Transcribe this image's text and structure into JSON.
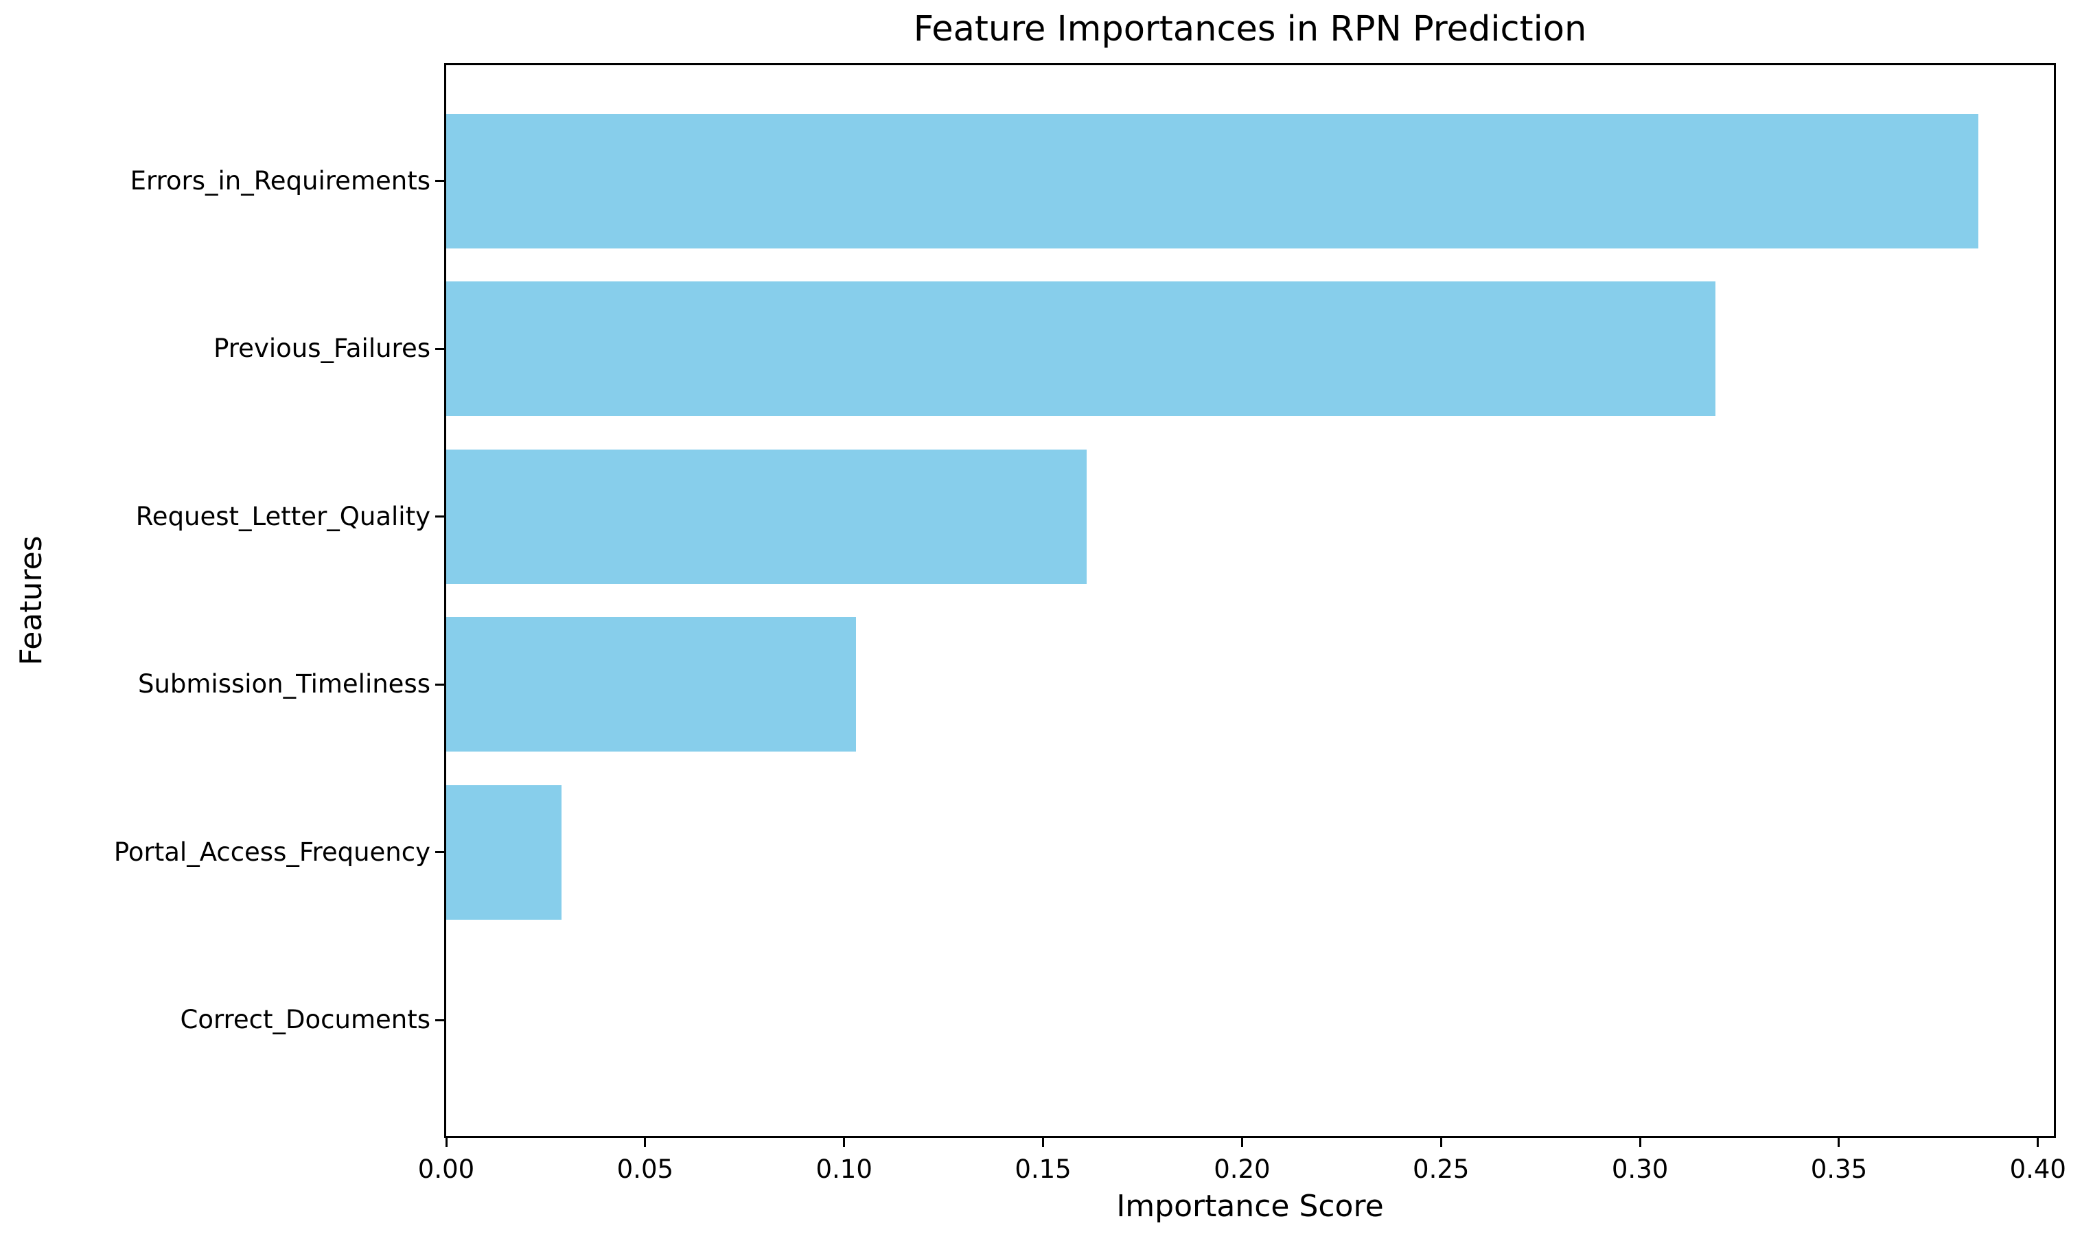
{
  "figure": {
    "background_color": "#ffffff",
    "spine_color": "#000000",
    "text_color": "#000000"
  },
  "chart_data": {
    "type": "bar",
    "orientation": "horizontal",
    "title": "Feature Importances in RPN Prediction",
    "xlabel": "Importance Score",
    "ylabel": "Features",
    "categories": [
      "Errors_in_Requirements",
      "Previous_Failures",
      "Request_Letter_Quality",
      "Submission_Timeliness",
      "Portal_Access_Frequency",
      "Correct_Documents"
    ],
    "values": [
      0.385,
      0.319,
      0.161,
      0.103,
      0.029,
      0.0
    ],
    "bar_color": "#87CEEB",
    "bar_height_units": 0.8,
    "xlim": [
      0.0,
      0.404
    ],
    "ylim": [
      -0.69,
      5.69
    ],
    "xtick_labels": [
      "0.00",
      "0.05",
      "0.10",
      "0.15",
      "0.20",
      "0.25",
      "0.30",
      "0.35",
      "0.40"
    ],
    "grid": false,
    "legend": null
  }
}
